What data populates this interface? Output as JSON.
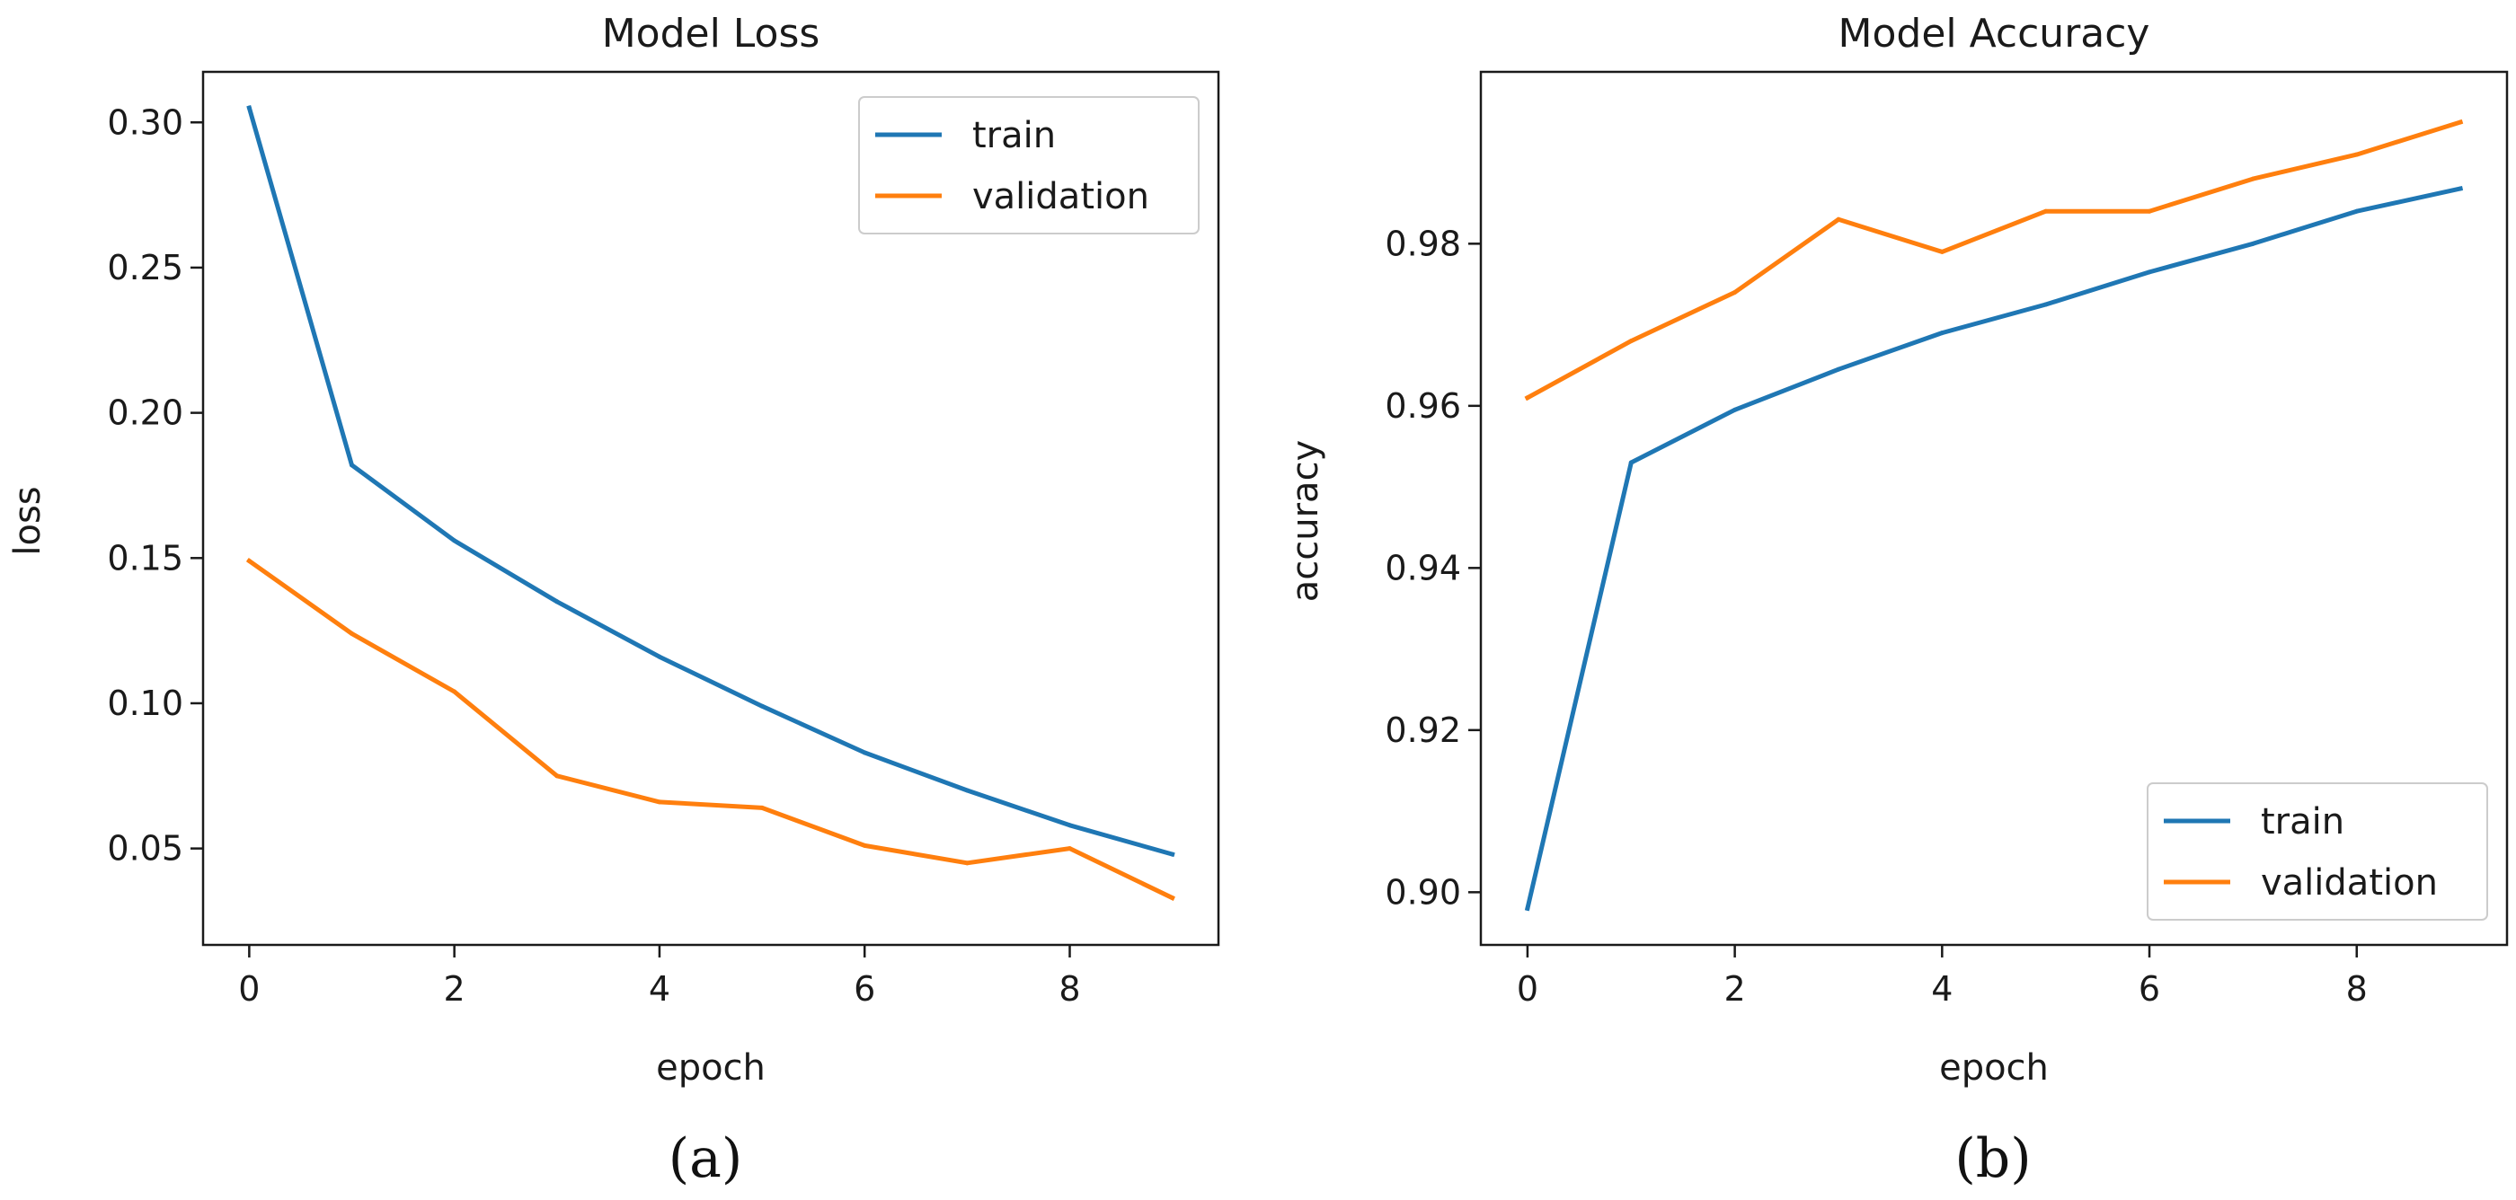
{
  "chart_data": [
    {
      "type": "line",
      "title": "Model Loss",
      "xlabel": "epoch",
      "ylabel": "loss",
      "caption": "(a)",
      "x": [
        0,
        1,
        2,
        3,
        4,
        5,
        6,
        7,
        8,
        9
      ],
      "xticks": [
        "0",
        "2",
        "4",
        "6",
        "8"
      ],
      "yticks": [
        "0.05",
        "0.10",
        "0.15",
        "0.20",
        "0.25",
        "0.30"
      ],
      "xlim": [
        -0.45,
        9.45
      ],
      "ylim": [
        0.0168,
        0.3174
      ],
      "legend": {
        "placement": "upper right",
        "entries": [
          "train",
          "validation"
        ]
      },
      "series": [
        {
          "name": "train",
          "color": "#1f77b4",
          "values": [
            0.305,
            0.182,
            0.156,
            0.135,
            0.116,
            0.099,
            0.083,
            0.07,
            0.058,
            0.048
          ]
        },
        {
          "name": "validation",
          "color": "#ff7f0e",
          "values": [
            0.149,
            0.124,
            0.104,
            0.075,
            0.066,
            0.064,
            0.051,
            0.045,
            0.05,
            0.033
          ]
        }
      ],
      "grid": false
    },
    {
      "type": "line",
      "title": "Model Accuracy",
      "xlabel": "epoch",
      "ylabel": "accuracy",
      "caption": "(b)",
      "x": [
        0,
        1,
        2,
        3,
        4,
        5,
        6,
        7,
        8,
        9
      ],
      "xticks": [
        "0",
        "2",
        "4",
        "6",
        "8"
      ],
      "yticks": [
        "0.90",
        "0.92",
        "0.94",
        "0.96",
        "0.98"
      ],
      "xlim": [
        -0.45,
        9.45
      ],
      "ylim": [
        0.8935,
        1.0012
      ],
      "legend": {
        "placement": "lower right",
        "entries": [
          "train",
          "validation"
        ]
      },
      "series": [
        {
          "name": "train",
          "color": "#1f77b4",
          "values": [
            0.898,
            0.953,
            0.9595,
            0.9645,
            0.969,
            0.9725,
            0.9765,
            0.98,
            0.984,
            0.9868
          ]
        },
        {
          "name": "validation",
          "color": "#ff7f0e",
          "values": [
            0.961,
            0.968,
            0.974,
            0.983,
            0.979,
            0.984,
            0.984,
            0.988,
            0.991,
            0.995
          ]
        }
      ],
      "grid": false
    }
  ]
}
